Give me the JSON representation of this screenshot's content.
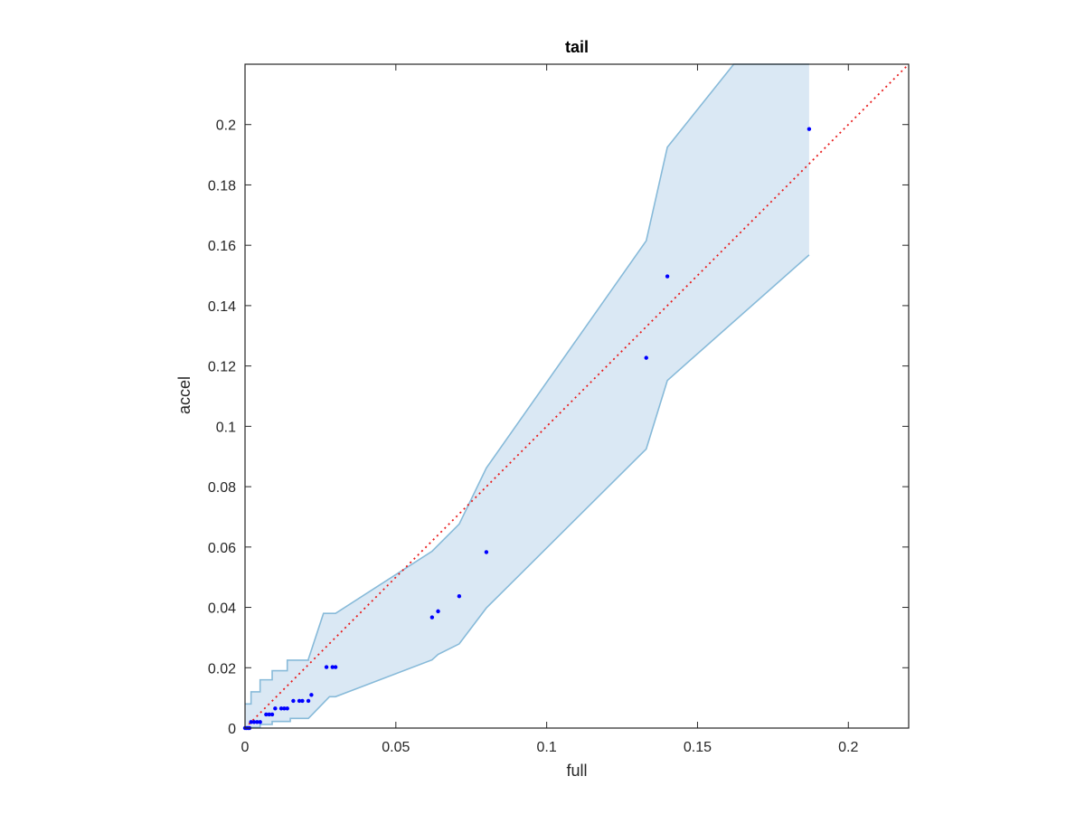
{
  "chart_data": {
    "type": "scatter",
    "title": "tail",
    "xlabel": "full",
    "ylabel": "accel",
    "xlim": [
      0,
      0.22
    ],
    "ylim": [
      0,
      0.22
    ],
    "xticks": [
      "0",
      "0.05",
      "0.1",
      "0.15",
      "0.2"
    ],
    "yticks": [
      "0",
      "0.02",
      "0.04",
      "0.06",
      "0.08",
      "0.1",
      "0.12",
      "0.14",
      "0.16",
      "0.18",
      "0.2"
    ],
    "grid": false,
    "points": {
      "color": "#0000ff",
      "x": [
        0.0,
        0.0005,
        0.001,
        0.0015,
        0.002,
        0.003,
        0.004,
        0.005,
        0.007,
        0.008,
        0.009,
        0.01,
        0.012,
        0.013,
        0.014,
        0.016,
        0.018,
        0.019,
        0.021,
        0.022,
        0.027,
        0.029,
        0.03,
        0.062,
        0.064,
        0.071,
        0.08,
        0.133,
        0.14,
        0.187
      ],
      "y": [
        0.0,
        0.0,
        0.0,
        0.0,
        0.002,
        0.002,
        0.002,
        0.002,
        0.0045,
        0.0045,
        0.0045,
        0.0065,
        0.0065,
        0.0065,
        0.0065,
        0.009,
        0.009,
        0.009,
        0.009,
        0.011,
        0.0202,
        0.0202,
        0.0202,
        0.0367,
        0.0387,
        0.0437,
        0.0583,
        0.1227,
        0.1497,
        0.1985
      ]
    },
    "band": {
      "fill": "#dae8f4",
      "stroke": "#87bad9",
      "upper": [
        [
          0,
          0.008
        ],
        [
          0.002,
          0.008
        ],
        [
          0.002,
          0.012
        ],
        [
          0.005,
          0.012
        ],
        [
          0.005,
          0.016
        ],
        [
          0.009,
          0.016
        ],
        [
          0.009,
          0.019
        ],
        [
          0.014,
          0.019
        ],
        [
          0.014,
          0.0225
        ],
        [
          0.021,
          0.0225
        ],
        [
          0.021,
          0.0228
        ],
        [
          0.026,
          0.038
        ],
        [
          0.03,
          0.038
        ],
        [
          0.062,
          0.0586
        ],
        [
          0.071,
          0.0676
        ],
        [
          0.08,
          0.0862
        ],
        [
          0.133,
          0.1615
        ],
        [
          0.14,
          0.1925
        ],
        [
          0.162,
          0.22
        ],
        [
          0.187,
          0.22
        ]
      ],
      "lower": [
        [
          0.187,
          0.1568
        ],
        [
          0.14,
          0.1152
        ],
        [
          0.133,
          0.0925
        ],
        [
          0.08,
          0.0398
        ],
        [
          0.071,
          0.0279
        ],
        [
          0.064,
          0.0244
        ],
        [
          0.062,
          0.0226
        ],
        [
          0.03,
          0.0104
        ],
        [
          0.028,
          0.0104
        ],
        [
          0.022,
          0.0042
        ],
        [
          0.021,
          0.0032
        ],
        [
          0.015,
          0.0032
        ],
        [
          0.015,
          0.0022
        ],
        [
          0.009,
          0.0022
        ],
        [
          0.009,
          0.0012
        ],
        [
          0.005,
          0.0012
        ],
        [
          0.005,
          0.0002
        ],
        [
          0.0,
          0.0002
        ]
      ]
    },
    "reference_line": {
      "style": "dotted",
      "color": "#e81c1c",
      "x": [
        0,
        0.22
      ],
      "y": [
        0,
        0.22
      ]
    }
  }
}
